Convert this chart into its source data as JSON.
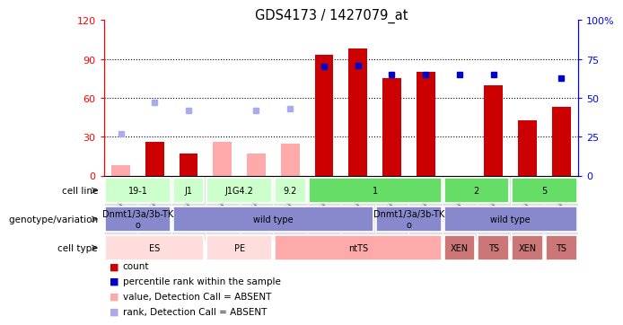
{
  "title": "GDS4173 / 1427079_at",
  "samples": [
    "GSM506221",
    "GSM506222",
    "GSM506223",
    "GSM506224",
    "GSM506225",
    "GSM506226",
    "GSM506227",
    "GSM506228",
    "GSM506229",
    "GSM506230",
    "GSM506233",
    "GSM506231",
    "GSM506234",
    "GSM506232"
  ],
  "count_values": [
    null,
    26,
    17,
    null,
    null,
    null,
    93,
    98,
    75,
    80,
    null,
    70,
    43,
    53
  ],
  "count_absent": [
    8,
    null,
    null,
    26,
    17,
    25,
    null,
    null,
    null,
    null,
    null,
    null,
    null,
    null
  ],
  "percentile_values": [
    null,
    null,
    null,
    null,
    null,
    null,
    70,
    71,
    65,
    65,
    65,
    65,
    null,
    63
  ],
  "percentile_absent": [
    27,
    47,
    42,
    null,
    42,
    43,
    null,
    null,
    null,
    null,
    null,
    null,
    null,
    null
  ],
  "left_ylim": [
    0,
    120
  ],
  "right_ylim": [
    0,
    100
  ],
  "left_yticks": [
    0,
    30,
    60,
    90,
    120
  ],
  "right_yticks": [
    0,
    25,
    50,
    75,
    100
  ],
  "left_ytick_labels": [
    "0",
    "30",
    "60",
    "90",
    "120"
  ],
  "right_ytick_labels": [
    "0",
    "25",
    "50",
    "75",
    "100%"
  ],
  "bar_color_present": "#cc0000",
  "bar_color_absent": "#ffaaaa",
  "dot_color_present": "#0000cc",
  "dot_color_absent": "#aaaaee",
  "cell_line_groups": [
    {
      "label": "19-1",
      "start": 0,
      "end": 2,
      "color": "#ccffcc"
    },
    {
      "label": "J1",
      "start": 2,
      "end": 3,
      "color": "#ccffcc"
    },
    {
      "label": "J1G4.2",
      "start": 3,
      "end": 5,
      "color": "#ccffcc"
    },
    {
      "label": "9.2",
      "start": 5,
      "end": 6,
      "color": "#ccffcc"
    },
    {
      "label": "1",
      "start": 6,
      "end": 10,
      "color": "#66dd66"
    },
    {
      "label": "2",
      "start": 10,
      "end": 12,
      "color": "#66dd66"
    },
    {
      "label": "5",
      "start": 12,
      "end": 14,
      "color": "#66dd66"
    }
  ],
  "genotype_groups": [
    {
      "label": "Dnmt1/3a/3b-TK\no",
      "start": 0,
      "end": 2,
      "color": "#8888cc"
    },
    {
      "label": "wild type",
      "start": 2,
      "end": 8,
      "color": "#8888cc"
    },
    {
      "label": "Dnmt1/3a/3b-TK\no",
      "start": 8,
      "end": 10,
      "color": "#8888cc"
    },
    {
      "label": "wild type",
      "start": 10,
      "end": 14,
      "color": "#8888cc"
    }
  ],
  "cell_type_groups": [
    {
      "label": "ES",
      "start": 0,
      "end": 3,
      "color": "#ffdddd"
    },
    {
      "label": "PE",
      "start": 3,
      "end": 5,
      "color": "#ffdddd"
    },
    {
      "label": "ntTS",
      "start": 5,
      "end": 10,
      "color": "#ffaaaa"
    },
    {
      "label": "XEN",
      "start": 10,
      "end": 11,
      "color": "#cc7777"
    },
    {
      "label": "TS",
      "start": 11,
      "end": 12,
      "color": "#cc7777"
    },
    {
      "label": "XEN",
      "start": 12,
      "end": 13,
      "color": "#cc7777"
    },
    {
      "label": "TS",
      "start": 13,
      "end": 14,
      "color": "#cc7777"
    }
  ],
  "legend_items": [
    {
      "label": "count",
      "color": "#cc0000"
    },
    {
      "label": "percentile rank within the sample",
      "color": "#0000cc"
    },
    {
      "label": "value, Detection Call = ABSENT",
      "color": "#ffaaaa"
    },
    {
      "label": "rank, Detection Call = ABSENT",
      "color": "#aaaaee"
    }
  ],
  "row_labels": [
    "cell line",
    "genotype/variation",
    "cell type"
  ]
}
